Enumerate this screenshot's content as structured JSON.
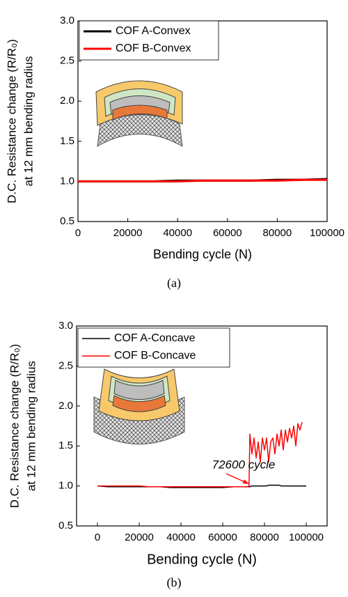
{
  "chart_data": [
    {
      "type": "line",
      "caption": "(a)",
      "ylabel_lines": [
        "D.C. Resistance change (R/R₀)",
        "at 12 mm bending radius"
      ],
      "xlabel": "Bending cycle (N)",
      "x": [
        0,
        10000,
        20000,
        30000,
        40000,
        50000,
        60000,
        70000,
        80000,
        90000,
        100000
      ],
      "series": [
        {
          "name": "COF A-Convex",
          "color": "#000000",
          "values": [
            1.0,
            1.0,
            1.0,
            1.0,
            1.01,
            1.01,
            1.01,
            1.01,
            1.02,
            1.02,
            1.03
          ]
        },
        {
          "name": "COF B-Convex",
          "color": "#ff0000",
          "values": [
            1.0,
            1.0,
            1.0,
            1.0,
            1.0,
            1.01,
            1.01,
            1.01,
            1.01,
            1.02,
            1.02
          ]
        }
      ],
      "xlim": [
        0,
        100000
      ],
      "xticks": [
        0,
        20000,
        40000,
        60000,
        80000,
        100000
      ],
      "ylim": [
        0.5,
        3.0
      ],
      "yticks": [
        0.5,
        {
          "value": 1,
          "label": "1.0"
        },
        1.5,
        {
          "value": 2,
          "label": "2.0"
        },
        2.5,
        {
          "value": 3,
          "label": "3.0"
        }
      ],
      "legend": "top-left"
    },
    {
      "type": "line",
      "caption": "(b)",
      "ylabel_lines": [
        "D.C. Resistance change (R/R₀)",
        "at 12 mm bending radius"
      ],
      "xlabel": "Bending cycle (N)",
      "x": [
        0,
        5000,
        10000,
        15000,
        20000,
        25000,
        30000,
        35000,
        40000,
        45000,
        50000,
        55000,
        60000,
        65000,
        70000,
        72000,
        72600,
        73000,
        74000,
        75000,
        76000,
        77000,
        78000,
        79000,
        80000,
        81000,
        82000,
        83000,
        84000,
        85000,
        86000,
        87000,
        88000,
        89000,
        90000,
        91000,
        92000,
        93000,
        94000,
        95000,
        96000,
        97000,
        98000,
        100000
      ],
      "series": [
        {
          "name": "COF A-Concave",
          "color": "#000000",
          "values": [
            1.0,
            0.99,
            0.99,
            0.99,
            0.99,
            0.99,
            0.99,
            0.98,
            0.98,
            0.98,
            0.98,
            0.98,
            0.98,
            0.99,
            0.99,
            0.99,
            0.99,
            0.99,
            1.0,
            1.0,
            1.0,
            1.0,
            1.0,
            1.0,
            1.0,
            1.0,
            1.01,
            1.01,
            1.01,
            1.01,
            1.01,
            1.01,
            1.0,
            1.0,
            1.0,
            1.0,
            1.0,
            1.0,
            1.0,
            1.0,
            1.0,
            1.0,
            1.0,
            1.0
          ]
        },
        {
          "name": "COF B-Concave",
          "color": "#ff0000",
          "values": [
            1.0,
            1.0,
            1.0,
            1.0,
            1.0,
            0.99,
            0.99,
            0.99,
            0.99,
            0.99,
            0.99,
            0.99,
            0.99,
            0.99,
            0.99,
            0.99,
            1.0,
            1.65,
            1.4,
            1.6,
            1.35,
            1.55,
            1.3,
            1.6,
            1.45,
            1.6,
            1.3,
            1.55,
            1.6,
            1.4,
            1.65,
            1.5,
            1.7,
            1.45,
            1.7,
            1.55,
            1.72,
            1.6,
            1.75,
            1.5,
            1.78,
            1.7,
            1.8,
            null
          ]
        }
      ],
      "xlim": [
        -10000,
        110000
      ],
      "xticks": [
        0,
        20000,
        40000,
        60000,
        80000,
        100000
      ],
      "ylim": [
        0.5,
        3.0
      ],
      "yticks": [
        0.5,
        {
          "value": 1,
          "label": "1.0"
        },
        1.5,
        {
          "value": 2,
          "label": "2.0"
        },
        2.5,
        {
          "value": 3,
          "label": "3.0"
        }
      ],
      "legend": "top-left",
      "annotation": {
        "text": "72600 cycle",
        "x": 72600,
        "y": 1.0,
        "color": "#ff0000"
      }
    }
  ]
}
